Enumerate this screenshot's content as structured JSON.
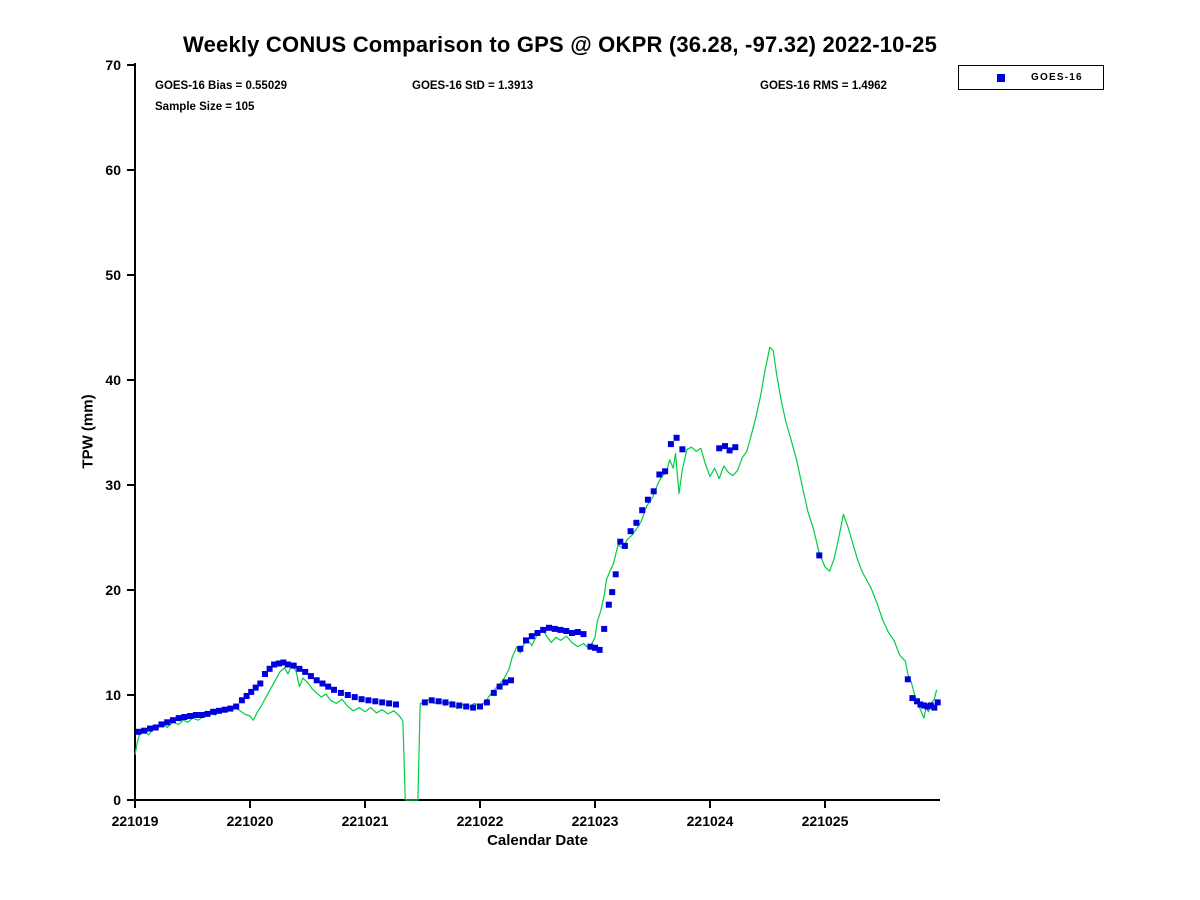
{
  "title": "Weekly CONUS Comparison to GPS @ OKPR (36.28, -97.32) 2022-10-25",
  "annotations": {
    "bias": "GOES-16 Bias = 0.55029",
    "std": "GOES-16 StD = 1.3913",
    "rms": "GOES-16 RMS = 1.4962",
    "sample_size": "Sample Size = 105"
  },
  "legend": {
    "entries": [
      {
        "label": "GOES-16",
        "marker": "square",
        "color": "#0000dd"
      }
    ]
  },
  "colors": {
    "gps_line": "#00cc44",
    "goes16_marker": "#0000dd",
    "axis": "#000000"
  },
  "chart_data": {
    "type": "line",
    "title": "Weekly CONUS Comparison to GPS @ OKPR (36.28, -97.32) 2022-10-25",
    "xlabel": "Calendar Date",
    "ylabel": "TPW (mm)",
    "xlim": [
      221019,
      221026
    ],
    "ylim": [
      0,
      70
    ],
    "x_ticks": [
      221019,
      221020,
      221021,
      221022,
      221023,
      221024,
      221025
    ],
    "x_tick_labels": [
      "221019",
      "221020",
      "221021",
      "221022",
      "221023",
      "221024",
      "221025"
    ],
    "y_ticks": [
      0,
      10,
      20,
      30,
      40,
      50,
      60,
      70
    ],
    "y_tick_labels": [
      "0",
      "10",
      "20",
      "30",
      "40",
      "50",
      "60",
      "70"
    ],
    "grid": false,
    "legend_position": "top-right-outside",
    "series": [
      {
        "name": "GPS",
        "type": "line",
        "color": "#00cc44",
        "x": [
          221019.0,
          221019.02,
          221019.04,
          221019.08,
          221019.12,
          221019.16,
          221019.2,
          221019.25,
          221019.28,
          221019.33,
          221019.38,
          221019.42,
          221019.46,
          221019.5,
          221019.55,
          221019.6,
          221019.65,
          221019.7,
          221019.75,
          221019.8,
          221019.85,
          221019.9,
          221019.95,
          221020.0,
          221020.03,
          221020.06,
          221020.1,
          221020.14,
          221020.18,
          221020.22,
          221020.26,
          221020.3,
          221020.33,
          221020.36,
          221020.4,
          221020.43,
          221020.46,
          221020.5,
          221020.54,
          221020.58,
          221020.62,
          221020.66,
          221020.7,
          221020.75,
          221020.8,
          221020.85,
          221020.9,
          221020.95,
          221021.0,
          221021.05,
          221021.1,
          221021.15,
          221021.2,
          221021.25,
          221021.3,
          221021.33,
          221021.35,
          221021.46,
          221021.48,
          221021.52,
          221021.56,
          221021.6,
          221021.65,
          221021.7,
          221021.75,
          221021.8,
          221021.85,
          221021.9,
          221021.95,
          221022.0,
          221022.05,
          221022.1,
          221022.15,
          221022.2,
          221022.25,
          221022.28,
          221022.32,
          221022.35,
          221022.38,
          221022.42,
          221022.45,
          221022.5,
          221022.55,
          221022.58,
          221022.62,
          221022.66,
          221022.7,
          221022.75,
          221022.8,
          221022.85,
          221022.9,
          221022.95,
          221023.0,
          221023.02,
          221023.05,
          221023.08,
          221023.1,
          221023.13,
          221023.16,
          221023.2,
          221023.24,
          221023.28,
          221023.32,
          221023.36,
          221023.4,
          221023.45,
          221023.5,
          221023.55,
          221023.58,
          221023.62,
          221023.65,
          221023.68,
          221023.7,
          221023.73,
          221023.76,
          221023.8,
          221023.84,
          221023.88,
          221023.92,
          221023.96,
          221024.0,
          221024.04,
          221024.08,
          221024.12,
          221024.16,
          221024.2,
          221024.24,
          221024.28,
          221024.32,
          221024.36,
          221024.4,
          221024.44,
          221024.48,
          221024.52,
          221024.55,
          221024.58,
          221024.62,
          221024.66,
          221024.7,
          221024.75,
          221024.8,
          221024.85,
          221024.9,
          221024.95,
          221025.0,
          221025.04,
          221025.08,
          221025.12,
          221025.16,
          221025.2,
          221025.24,
          221025.28,
          221025.32,
          221025.36,
          221025.4,
          221025.45,
          221025.5,
          221025.55,
          221025.6,
          221025.65,
          221025.7,
          221025.72,
          221025.75,
          221025.78,
          221025.8,
          221025.83,
          221025.86,
          221025.88,
          221025.9,
          221025.92,
          221025.95,
          221025.97
        ],
        "y": [
          4.3,
          5.5,
          6.3,
          6.6,
          6.2,
          6.8,
          7.0,
          7.2,
          6.9,
          7.4,
          7.2,
          7.6,
          7.4,
          7.8,
          7.6,
          8.0,
          8.3,
          8.1,
          8.6,
          8.4,
          8.9,
          8.6,
          8.2,
          8.0,
          7.6,
          8.3,
          9.0,
          9.8,
          10.6,
          11.4,
          12.2,
          12.6,
          12.0,
          12.8,
          12.3,
          10.8,
          11.6,
          11.2,
          10.6,
          10.2,
          9.8,
          10.1,
          9.5,
          9.2,
          9.6,
          8.9,
          8.5,
          8.8,
          8.4,
          8.8,
          8.3,
          8.6,
          8.2,
          8.5,
          8.0,
          7.5,
          0.0,
          0.0,
          9.2,
          9.3,
          9.6,
          9.2,
          9.5,
          9.0,
          9.4,
          8.7,
          9.1,
          8.8,
          9.2,
          9.0,
          9.4,
          10.2,
          10.8,
          11.4,
          12.4,
          13.6,
          14.6,
          14.0,
          14.8,
          15.2,
          14.7,
          15.8,
          16.2,
          15.6,
          15.0,
          15.5,
          15.2,
          15.6,
          15.0,
          14.6,
          14.9,
          14.4,
          15.5,
          17.0,
          18.0,
          19.5,
          21.0,
          21.8,
          22.5,
          24.3,
          24.0,
          24.8,
          25.2,
          25.8,
          26.5,
          28.0,
          28.8,
          30.2,
          30.8,
          31.2,
          32.4,
          31.6,
          33.0,
          29.2,
          31.5,
          33.4,
          33.6,
          33.2,
          33.5,
          32.0,
          30.8,
          31.6,
          30.6,
          31.8,
          31.2,
          30.9,
          31.4,
          32.6,
          33.2,
          34.8,
          36.5,
          38.5,
          41.0,
          43.1,
          42.8,
          40.5,
          38.0,
          36.0,
          34.5,
          32.5,
          30.0,
          27.5,
          25.8,
          23.5,
          22.2,
          21.8,
          23.0,
          25.0,
          27.2,
          26.0,
          24.5,
          23.0,
          21.8,
          21.0,
          20.2,
          18.8,
          17.2,
          16.0,
          15.2,
          13.8,
          13.2,
          12.0,
          11.2,
          10.0,
          9.4,
          8.6,
          7.8,
          8.8,
          8.4,
          9.2,
          9.6,
          10.5
        ]
      },
      {
        "name": "GOES-16",
        "type": "scatter",
        "marker": "square",
        "color": "#0000dd",
        "x": [
          221019.03,
          221019.08,
          221019.13,
          221019.18,
          221019.23,
          221019.28,
          221019.33,
          221019.38,
          221019.43,
          221019.48,
          221019.53,
          221019.58,
          221019.63,
          221019.68,
          221019.73,
          221019.78,
          221019.83,
          221019.88,
          221019.93,
          221019.97,
          221020.01,
          221020.05,
          221020.09,
          221020.13,
          221020.17,
          221020.21,
          221020.25,
          221020.29,
          221020.33,
          221020.38,
          221020.43,
          221020.48,
          221020.53,
          221020.58,
          221020.63,
          221020.68,
          221020.73,
          221020.79,
          221020.85,
          221020.91,
          221020.97,
          221021.03,
          221021.09,
          221021.15,
          221021.21,
          221021.27,
          221021.52,
          221021.58,
          221021.64,
          221021.7,
          221021.76,
          221021.82,
          221021.88,
          221021.94,
          221022.0,
          221022.06,
          221022.12,
          221022.17,
          221022.22,
          221022.27,
          221022.35,
          221022.4,
          221022.45,
          221022.5,
          221022.55,
          221022.6,
          221022.65,
          221022.7,
          221022.75,
          221022.8,
          221022.85,
          221022.9,
          221022.96,
          221023.0,
          221023.04,
          221023.08,
          221023.12,
          221023.15,
          221023.18,
          221023.22,
          221023.26,
          221023.31,
          221023.36,
          221023.41,
          221023.46,
          221023.51,
          221023.56,
          221023.61,
          221023.66,
          221023.71,
          221023.76,
          221024.08,
          221024.13,
          221024.17,
          221024.22,
          221024.95,
          221025.72,
          221025.76,
          221025.8,
          221025.83,
          221025.86,
          221025.89,
          221025.92,
          221025.95,
          221025.98
        ],
        "y": [
          6.5,
          6.6,
          6.8,
          6.9,
          7.2,
          7.4,
          7.6,
          7.8,
          7.9,
          8.0,
          8.1,
          8.1,
          8.2,
          8.4,
          8.5,
          8.6,
          8.7,
          8.9,
          9.5,
          9.9,
          10.3,
          10.7,
          11.1,
          12.0,
          12.5,
          12.9,
          13.0,
          13.1,
          12.9,
          12.8,
          12.5,
          12.2,
          11.8,
          11.4,
          11.1,
          10.8,
          10.5,
          10.2,
          10.0,
          9.8,
          9.6,
          9.5,
          9.4,
          9.3,
          9.2,
          9.1,
          9.3,
          9.5,
          9.4,
          9.3,
          9.1,
          9.0,
          8.9,
          8.8,
          8.9,
          9.3,
          10.2,
          10.8,
          11.2,
          11.4,
          14.4,
          15.2,
          15.6,
          15.9,
          16.2,
          16.4,
          16.3,
          16.2,
          16.1,
          15.9,
          16.0,
          15.8,
          14.6,
          14.5,
          14.3,
          16.3,
          18.6,
          19.8,
          21.5,
          24.6,
          24.2,
          25.6,
          26.4,
          27.6,
          28.6,
          29.4,
          31.0,
          31.3,
          33.9,
          34.5,
          33.4,
          33.5,
          33.7,
          33.3,
          33.6,
          23.3,
          11.5,
          9.7,
          9.4,
          9.1,
          9.0,
          8.9,
          9.0,
          8.8,
          9.3
        ]
      }
    ]
  }
}
